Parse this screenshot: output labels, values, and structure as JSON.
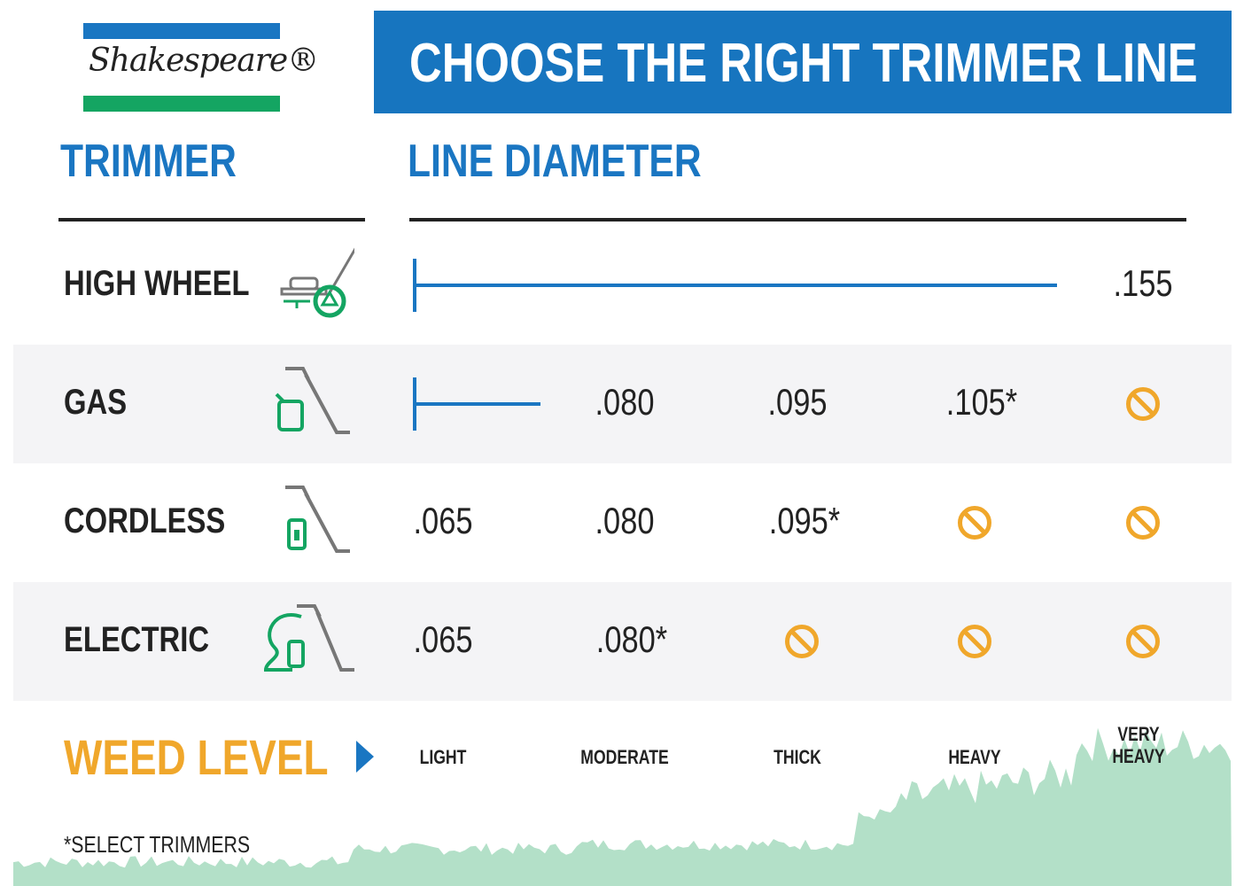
{
  "logo": {
    "text": "Shakespeare®",
    "colors": {
      "top": "#1a76c2",
      "bottom": "#14a562"
    }
  },
  "banner": {
    "title": "CHOOSE THE RIGHT TRIMMER LINE"
  },
  "headers": {
    "trimmer": "TRIMMER",
    "line_diameter": "LINE DIAMETER"
  },
  "rows": [
    {
      "label": "HIGH WHEEL",
      "icon": "high-wheel-trimmer-icon",
      "bar_to": ".155",
      "cells": [
        {
          "type": "bar"
        },
        {
          "type": "bar"
        },
        {
          "type": "bar"
        },
        {
          "type": "bar"
        },
        {
          "type": "value",
          "text": ".155"
        }
      ]
    },
    {
      "label": "GAS",
      "icon": "gas-trimmer-icon",
      "cells": [
        {
          "type": "bar"
        },
        {
          "type": "value",
          "text": ".080"
        },
        {
          "type": "value",
          "text": ".095"
        },
        {
          "type": "value",
          "text": ".105*"
        },
        {
          "type": "none"
        }
      ]
    },
    {
      "label": "CORDLESS",
      "icon": "cordless-trimmer-icon",
      "cells": [
        {
          "type": "value",
          "text": ".065"
        },
        {
          "type": "value",
          "text": ".080"
        },
        {
          "type": "value",
          "text": ".095*"
        },
        {
          "type": "none"
        },
        {
          "type": "none"
        }
      ]
    },
    {
      "label": "ELECTRIC",
      "icon": "electric-trimmer-icon",
      "cells": [
        {
          "type": "value",
          "text": ".065"
        },
        {
          "type": "value",
          "text": ".080*"
        },
        {
          "type": "none"
        },
        {
          "type": "none"
        },
        {
          "type": "none"
        }
      ]
    }
  ],
  "weed_level": {
    "label": "WEED LEVEL",
    "levels": [
      "LIGHT",
      "MODERATE",
      "THICK",
      "HEAVY",
      "VERY\nHEAVY"
    ]
  },
  "footnote": "*SELECT TRIMMERS",
  "colors": {
    "blue": "#1a76c2",
    "green": "#14a562",
    "orange": "#f0a72b",
    "grass": "#b3e0c8",
    "row_grey": "#f4f4f6"
  }
}
